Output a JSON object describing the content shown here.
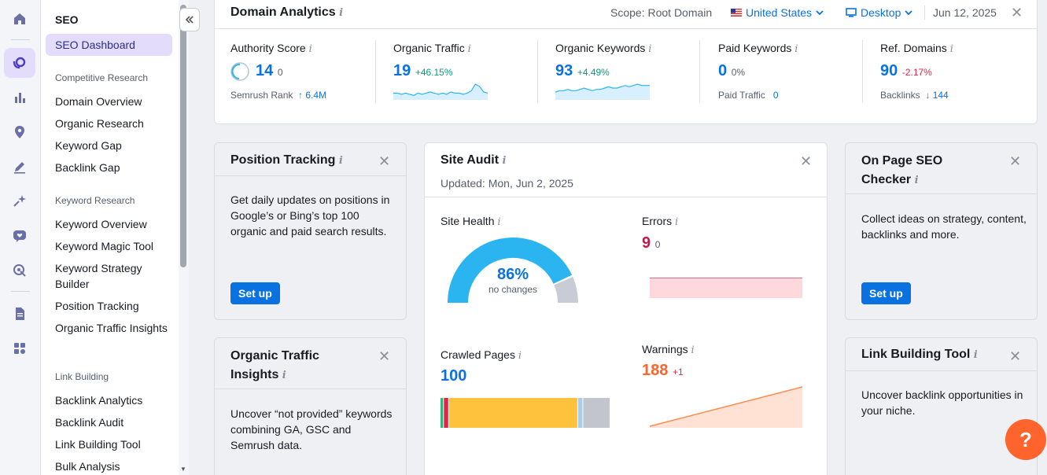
{
  "rail": {
    "icons": [
      "home-icon",
      "seo-icon",
      "chart-icon",
      "location-icon",
      "pen-icon",
      "ai-sparkle-icon",
      "heart-chat-icon",
      "target-icon",
      "document-icon",
      "apps-icon"
    ]
  },
  "sidebar": {
    "title": "SEO",
    "active": "SEO Dashboard",
    "sections": [
      {
        "heading": "Competitive Research",
        "items": [
          "Domain Overview",
          "Organic Research",
          "Keyword Gap",
          "Backlink Gap"
        ]
      },
      {
        "heading": "Keyword Research",
        "items": [
          "Keyword Overview",
          "Keyword Magic Tool",
          "Keyword Strategy Builder",
          "Position Tracking",
          "Organic Traffic Insights"
        ]
      },
      {
        "heading": "Link Building",
        "items": [
          "Backlink Analytics",
          "Backlink Audit",
          "Link Building Tool",
          "Bulk Analysis"
        ]
      }
    ]
  },
  "domain_analytics": {
    "title": "Domain Analytics",
    "scope": "Scope: Root Domain",
    "country": "United States",
    "device": "Desktop",
    "date": "Jun 12, 2025",
    "metrics": {
      "authority": {
        "label": "Authority Score",
        "value": "14",
        "sub": "0",
        "rank_label": "Semrush Rank",
        "rank_value": "6.4M",
        "rank_arrow": "↑"
      },
      "organic_traffic": {
        "label": "Organic Traffic",
        "value": "19",
        "change": "+46.15%",
        "spark": [
          6,
          6,
          5,
          6,
          5,
          4,
          6,
          5,
          6,
          7,
          6,
          5,
          6,
          5,
          7,
          6,
          6,
          5,
          6,
          8,
          14,
          12,
          7,
          6
        ]
      },
      "organic_keywords": {
        "label": "Organic Keywords",
        "value": "93",
        "change": "+4.49%",
        "spark": [
          6,
          7,
          7,
          8,
          7,
          7,
          8,
          9,
          8,
          7,
          8,
          8,
          9,
          10,
          9,
          9,
          10,
          11,
          10,
          11,
          12,
          11,
          11,
          11
        ]
      },
      "paid_keywords": {
        "label": "Paid Keywords",
        "value": "0",
        "change": "0%",
        "sub_label": "Paid Traffic",
        "sub_value": "0"
      },
      "ref_domains": {
        "label": "Ref. Domains",
        "value": "90",
        "change": "-2.17%",
        "sub_label": "Backlinks",
        "sub_value": "144",
        "sub_arrow": "↓"
      }
    }
  },
  "position_tracking": {
    "title": "Position Tracking",
    "body": "Get daily updates on positions in Google’s or Bing’s top 100 organic and paid search results.",
    "button": "Set up"
  },
  "organic_insights": {
    "title": "Organic Traffic Insights",
    "body": "Uncover “not provided” keywords combining GA, GSC and Semrush data."
  },
  "site_audit": {
    "title": "Site Audit",
    "updated": "Updated: Mon, Jun 2, 2025",
    "health": {
      "label": "Site Health",
      "value": "86%",
      "note": "no changes",
      "fraction": 0.86
    },
    "errors": {
      "label": "Errors",
      "value": "9",
      "change": "0"
    },
    "crawled": {
      "label": "Crawled Pages",
      "value": "100",
      "segments": [
        {
          "share": 0.02,
          "color": "#2fb97f"
        },
        {
          "share": 0.03,
          "color": "#e0254a"
        },
        {
          "share": 0.76,
          "color": "#ffc23d"
        },
        {
          "share": 0.03,
          "color": "#a7cde8"
        },
        {
          "share": 0.16,
          "color": "#c2c5ce"
        }
      ]
    },
    "warnings": {
      "label": "Warnings",
      "value": "188",
      "change": "+1"
    }
  },
  "on_page": {
    "title": "On Page SEO Checker",
    "body": "Collect ideas on strategy, content, backlinks and more.",
    "button": "Set up"
  },
  "link_building": {
    "title": "Link Building Tool",
    "body": "Uncover backlink opportunities in your niche."
  },
  "help": {
    "label": "?"
  }
}
